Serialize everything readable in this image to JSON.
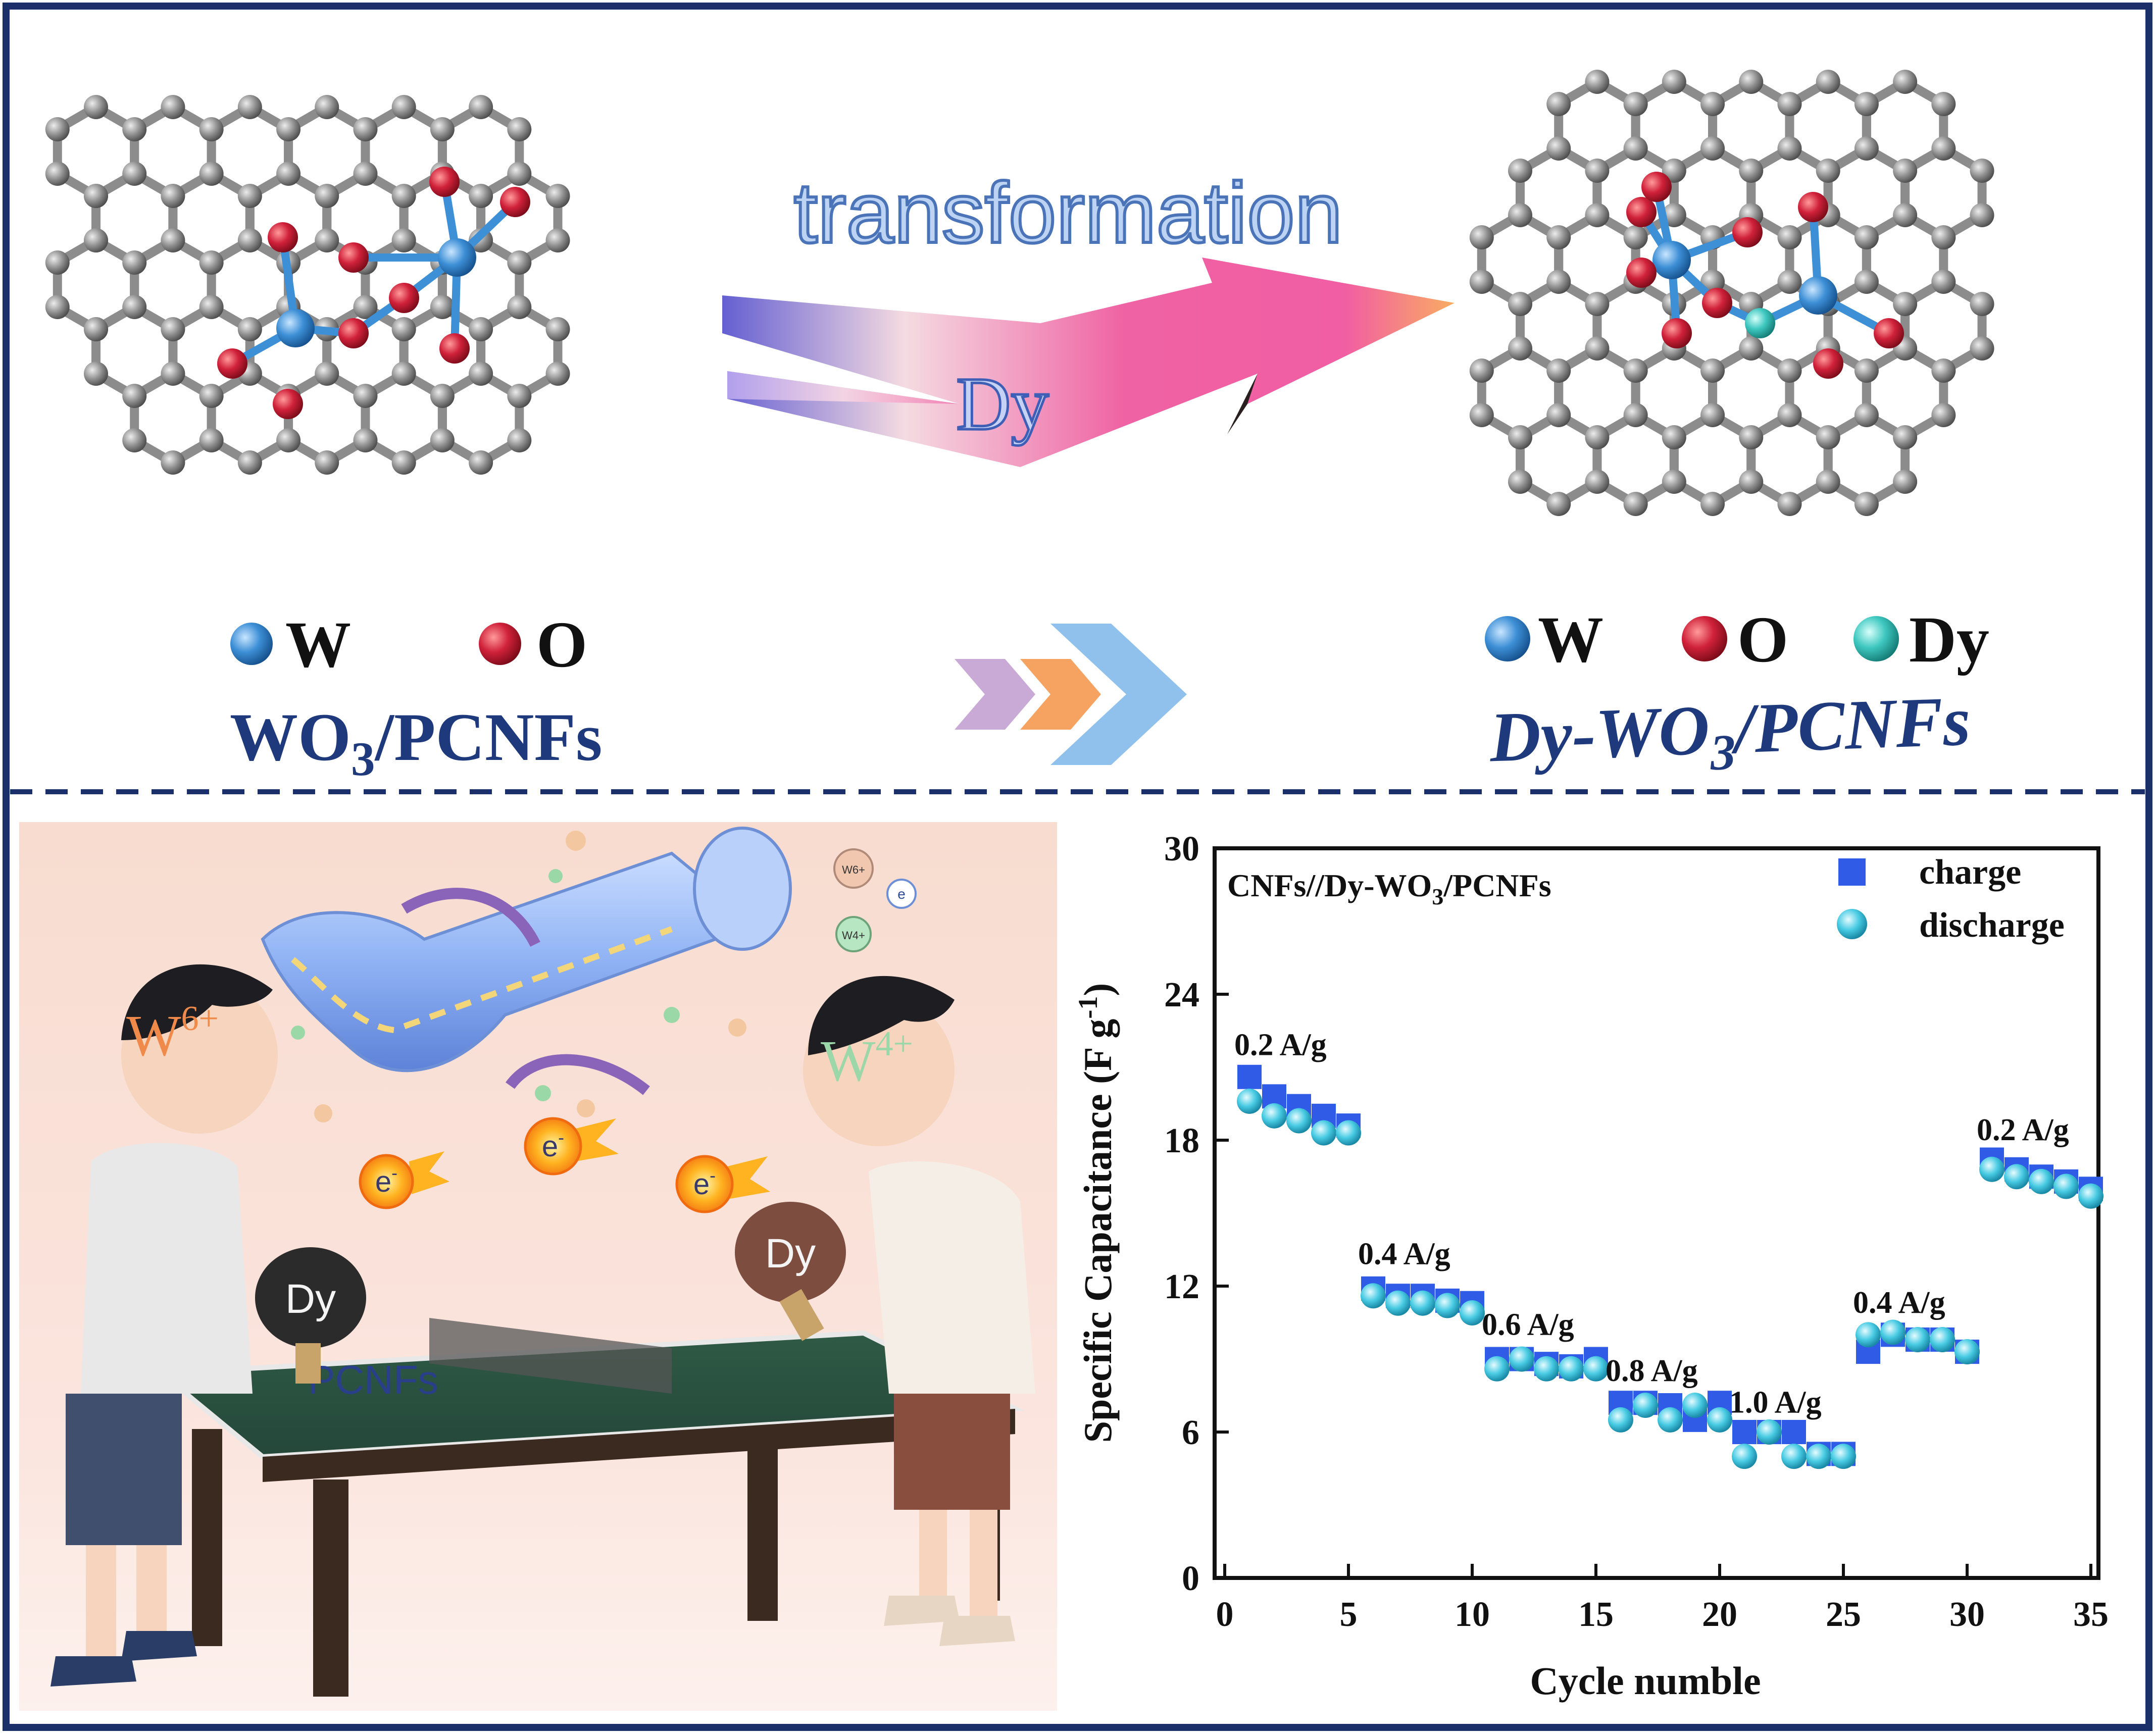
{
  "top_panel": {
    "arrow_word": "transformation",
    "arrow_dopant": "Dy",
    "left_legend": [
      {
        "symbol": "W",
        "color": "#3d8fd6"
      },
      {
        "symbol": "O",
        "color": "#d0213a"
      }
    ],
    "left_title_main": "WO",
    "left_title_sub": "3",
    "left_title_tail": "/PCNFs",
    "right_legend": [
      {
        "symbol": "W",
        "color": "#3d8fd6"
      },
      {
        "symbol": "O",
        "color": "#d0213a"
      },
      {
        "symbol": "Dy",
        "color": "#3ec8c0"
      }
    ],
    "right_title_main": "Dy-WO",
    "right_title_sub": "3",
    "right_title_tail": "/PCNFs",
    "chevron_colors": [
      "#c9a9d6",
      "#f6a261",
      "#8fc1ec"
    ]
  },
  "illustration": {
    "left_ion": "W",
    "left_ion_sup": "6+",
    "right_ion": "W",
    "right_ion_sup": "4+",
    "left_paddle": "Dy",
    "right_paddle": "Dy",
    "table_label": "PCNFs",
    "electron": "e",
    "electron_sup": "-",
    "small_ion_w6": "W6+",
    "small_ion_w4": "W4+"
  },
  "chart_data": {
    "type": "scatter",
    "title_main": "CNFs//Dy-WO",
    "title_sub": "3",
    "title_tail": "/PCNFs",
    "xlabel": "Cycle numble",
    "ylabel_main": "Specific Capacitance (F g",
    "ylabel_sup": "-1",
    "ylabel_tail": ")",
    "xlim": [
      0,
      35
    ],
    "ylim": [
      0,
      30
    ],
    "xticks": [
      0,
      5,
      10,
      15,
      20,
      25,
      30,
      35
    ],
    "yticks": [
      0,
      6,
      12,
      18,
      24,
      30
    ],
    "grid": false,
    "legend_position": "top-right",
    "series": [
      {
        "name": "charge",
        "marker": "square",
        "color": "#2f5be6",
        "x": [
          1,
          2,
          3,
          4,
          5,
          6,
          7,
          8,
          9,
          10,
          11,
          12,
          13,
          14,
          15,
          16,
          17,
          18,
          19,
          20,
          21,
          22,
          23,
          24,
          25,
          26,
          27,
          28,
          29,
          30,
          31,
          32,
          33,
          34,
          35
        ],
        "y": [
          20.6,
          19.8,
          19.4,
          19.0,
          18.6,
          11.9,
          11.6,
          11.6,
          11.4,
          11.3,
          9.0,
          9.0,
          8.8,
          8.7,
          9.0,
          7.2,
          7.2,
          7.1,
          6.5,
          7.2,
          6.0,
          6.0,
          6.0,
          5.1,
          5.1,
          9.3,
          10.0,
          9.8,
          9.8,
          9.3,
          17.2,
          16.8,
          16.5,
          16.3,
          16.0
        ]
      },
      {
        "name": "discharge",
        "marker": "circle",
        "color": "#48cbe3",
        "x": [
          1,
          2,
          3,
          4,
          5,
          6,
          7,
          8,
          9,
          10,
          11,
          12,
          13,
          14,
          15,
          16,
          17,
          18,
          19,
          20,
          21,
          22,
          23,
          24,
          25,
          26,
          27,
          28,
          29,
          30,
          31,
          32,
          33,
          34,
          35
        ],
        "y": [
          19.6,
          19.0,
          18.8,
          18.3,
          18.3,
          11.6,
          11.3,
          11.3,
          11.2,
          10.9,
          8.6,
          9.0,
          8.6,
          8.6,
          8.6,
          6.5,
          7.1,
          6.5,
          7.1,
          6.5,
          5.0,
          6.0,
          5.0,
          5.0,
          5.0,
          10.0,
          10.1,
          9.8,
          9.8,
          9.3,
          16.8,
          16.5,
          16.3,
          16.1,
          15.7
        ]
      }
    ],
    "annotations": [
      {
        "text": "0.2 A/g",
        "x": 1.0,
        "y": 21.5
      },
      {
        "text": "0.4 A/g",
        "x": 6.0,
        "y": 12.9
      },
      {
        "text": "0.6 A/g",
        "x": 11.0,
        "y": 10.0
      },
      {
        "text": "0.8 A/g",
        "x": 16.0,
        "y": 8.1
      },
      {
        "text": "1.0 A/g",
        "x": 21.0,
        "y": 6.8
      },
      {
        "text": "0.4 A/g",
        "x": 26.0,
        "y": 10.9
      },
      {
        "text": "0.2 A/g",
        "x": 31.0,
        "y": 18.0
      }
    ]
  }
}
